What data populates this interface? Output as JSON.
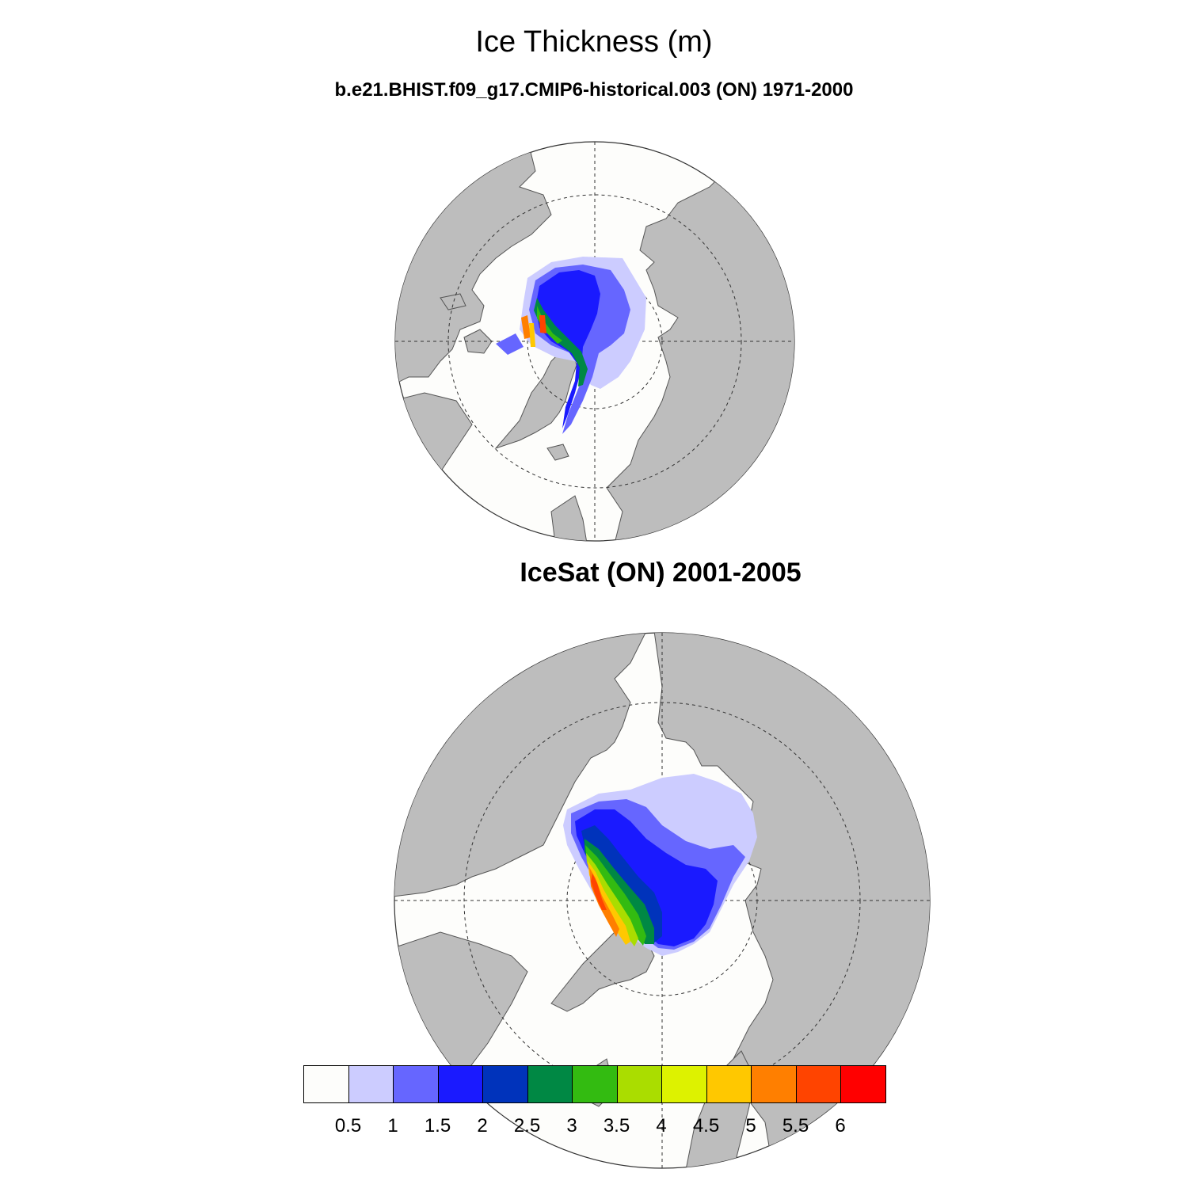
{
  "title": "Ice Thickness (m)",
  "subtitle": "b.e21.BHIST.f09_g17.CMIP6-historical.003 (ON) 1971-2000",
  "panel2_title": "IceSat (ON) 2001-2005",
  "colorbar": {
    "colors": [
      "#fdfdfb",
      "#ccccff",
      "#6666ff",
      "#1a1aff",
      "#0033bb",
      "#008844",
      "#33bb11",
      "#aadd00",
      "#ddf200",
      "#ffc800",
      "#ff7f00",
      "#ff4400",
      "#ff0000"
    ],
    "labels": [
      "0.5",
      "1",
      "1.5",
      "2",
      "2.5",
      "3",
      "3.5",
      "4",
      "4.5",
      "5",
      "5.5",
      "6"
    ]
  },
  "colors": {
    "land": "#bdbdbd",
    "ocean": "#fdfdfb"
  }
}
